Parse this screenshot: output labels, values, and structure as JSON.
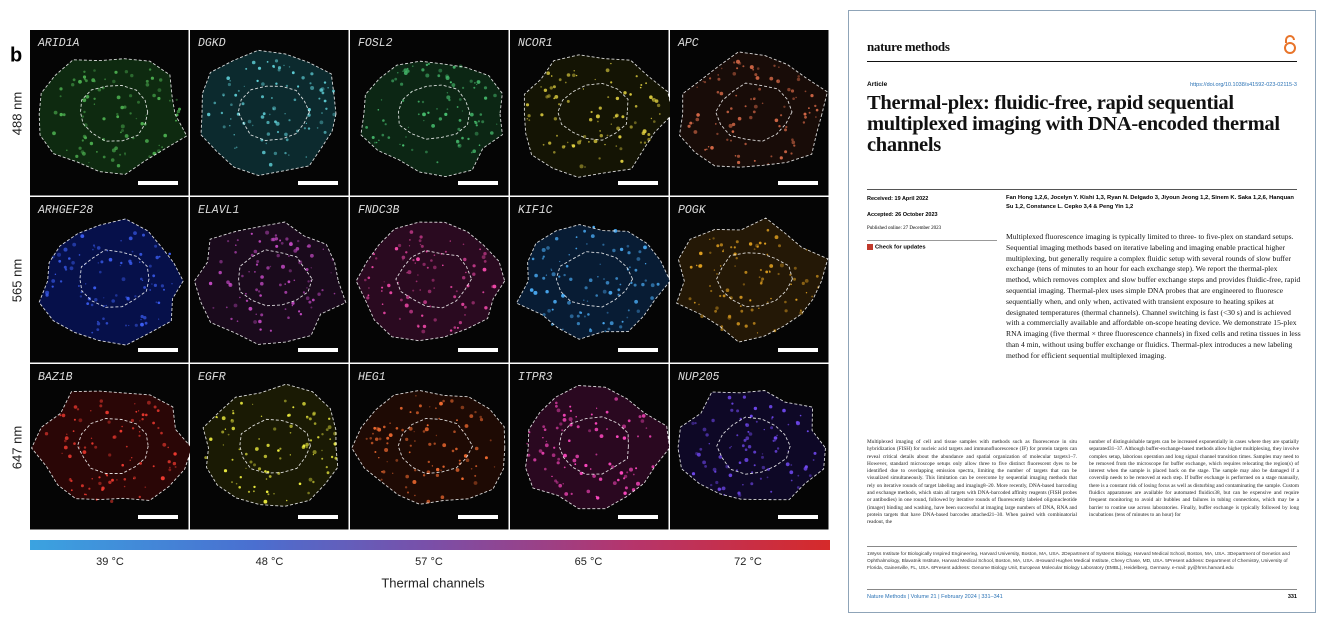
{
  "figure": {
    "panel_label": "b",
    "rows": [
      {
        "label": "488 nm",
        "genes": [
          "ARID1A",
          "DGKD",
          "FOSL2",
          "NCOR1",
          "APC"
        ]
      },
      {
        "label": "565 nm",
        "genes": [
          "ARHGEF28",
          "ELAVL1",
          "FNDC3B",
          "KIF1C",
          "POGK"
        ]
      },
      {
        "label": "647 nm",
        "genes": [
          "BAZ1B",
          "EGFR",
          "HEG1",
          "ITPR3",
          "NUP205"
        ]
      }
    ],
    "colorbar": {
      "ticks": [
        "39 °C",
        "48 °C",
        "57 °C",
        "65 °C",
        "72 °C"
      ],
      "label": "Thermal channels"
    }
  },
  "article": {
    "journal": "nature methods",
    "section": "Article",
    "doi": "https://doi.org/10.1038/s41592-023-02115-3",
    "title": "Thermal-plex: fluidic-free, rapid sequential multiplexed imaging with DNA-encoded thermal channels",
    "received": "Received: 19 April 2022",
    "accepted": "Accepted: 26 October 2023",
    "published": "Published online: 27 December 2023",
    "check_updates": "Check for updates",
    "authors": "Fan Hong 1,2,6, Jocelyn Y. Kishi 1,3, Ryan N. Delgado 3, Jiyoun Jeong 1,2, Sinem K. Saka 1,2,6, Hanquan Su 1,2, Constance L. Cepko 3,4 & Peng Yin 1,2",
    "abstract": "Multiplexed fluorescence imaging is typically limited to three- to five-plex on standard setups. Sequential imaging methods based on iterative labeling and imaging enable practical higher multiplexing, but generally require a complex fluidic setup with several rounds of slow buffer exchange (tens of minutes to an hour for each exchange step). We report the thermal-plex method, which removes complex and slow buffer exchange steps and provides fluidic-free, rapid sequential imaging. Thermal-plex uses simple DNA probes that are engineered to fluoresce sequentially when, and only when, activated with transient exposure to heating spikes at designated temperatures (thermal channels). Channel switching is fast (<30 s) and is achieved with a commercially available and affordable on-scope heating device. We demonstrate 15-plex RNA imaging (five thermal × three fluorescence channels) in fixed cells and retina tissues in less than 4 min, without using buffer exchange or fluidics. Thermal-plex introduces a new labeling method for efficient sequential multiplexed imaging.",
    "body_left": "Multiplexed imaging of cell and tissue samples with methods such as fluorescence in situ hybridization (FISH) for nucleic acid targets and immunofluorescence (IF) for protein targets can reveal critical details about the abundance and spatial organization of molecular targets1–7. However, standard microscope setups only allow three to five distinct fluorescent dyes to be identified due to overlapping emission spectra, limiting the number of targets that can be visualized simultaneously. This limitation can be overcome by sequential imaging methods that rely on iterative rounds of target labeling and imaging8–20. More recently, DNA-based barcoding and exchange methods, which stain all targets with DNA-barcoded affinity reagents (FISH probes or antibodies) in one round, followed by iterative rounds of fluorescently labeled oligonucleotide (imager) binding and washing, have been successful at imaging large numbers of DNA, RNA and protein targets that have DNA-based barcodes attached21–30. When paired with combinatorial readout, the",
    "body_right": "number of distinguishable targets can be increased exponentially in cases where they are spatially separated31–37. Although buffer-exchange-based methods allow higher multiplexing, they involve complex setup, laborious operation and long signal channel transition times. Samples may need to be removed from the microscope for buffer exchange, which requires relocating the region(s) of interest when the sample is placed back on the stage. The sample may also be damaged if a coverslip needs to be removed at each step. If buffer exchange is performed on a stage manually, there is a constant risk of losing focus as well as disturbing and contaminating the sample. Custom fluidics apparatuses are available for automated fluidics38, but can be expensive and require frequent monitoring to avoid air bubbles and failures in tubing connections, which may be a barrier to routine use across laboratories. Finally, buffer exchange is typically followed by long incubations (tens of minutes to an hour) for",
    "affiliations": "1Wyss Institute for Biologically Inspired Engineering, Harvard University, Boston, MA, USA. 2Department of Systems Biology, Harvard Medical School, Boston, MA, USA. 3Department of Genetics and Ophthalmology, Blavatnik Institute, Harvard Medical School, Boston, MA, USA. 4Howard Hughes Medical Institute, Chevy Chase, MD, USA. 5Present address: Department of Chemistry, University of Florida, Gainesville, FL, USA. 6Present address: Genome Biology Unit, European Molecular Biology Laboratory (EMBL), Heidelberg, Germany. e-mail: py@hms.harvard.edu",
    "footer": "Nature Methods | Volume 21 | February 2024 | 331–341",
    "page_number": "331"
  }
}
